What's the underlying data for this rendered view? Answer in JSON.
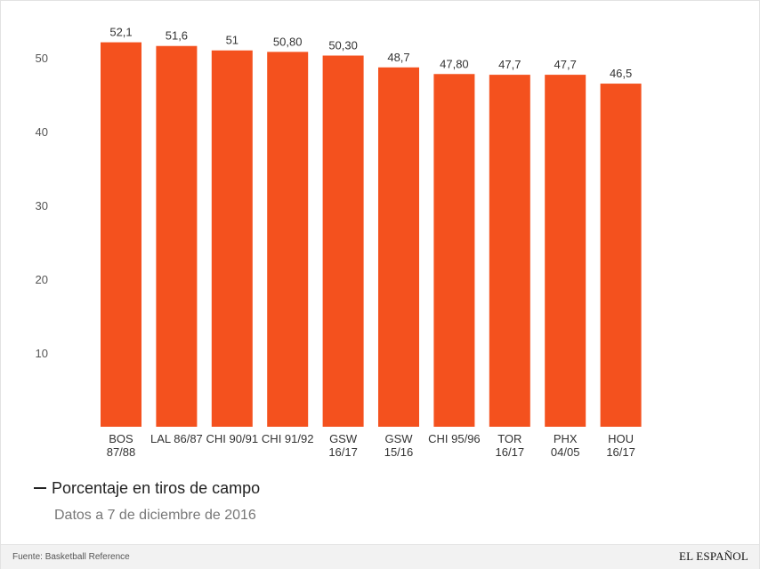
{
  "chart_data": {
    "type": "bar",
    "categories": [
      [
        "BOS",
        "87/88"
      ],
      [
        "LAL 86/87"
      ],
      [
        "CHI 90/91"
      ],
      [
        "CHI 91/92"
      ],
      [
        "GSW",
        "16/17"
      ],
      [
        "GSW",
        "15/16"
      ],
      [
        "CHI 95/96"
      ],
      [
        "TOR",
        "16/17"
      ],
      [
        "PHX",
        "04/05"
      ],
      [
        "HOU",
        "16/17"
      ]
    ],
    "values": [
      52.1,
      51.6,
      51,
      50.8,
      50.3,
      48.7,
      47.8,
      47.7,
      47.7,
      46.5
    ],
    "value_labels": [
      "52,1",
      "51,6",
      "51",
      "50,80",
      "50,30",
      "48,7",
      "47,80",
      "47,7",
      "47,7",
      "46,5"
    ],
    "yticks": [
      10,
      20,
      30,
      40,
      50
    ],
    "ylim": [
      0,
      55
    ],
    "grid": false,
    "bar_color": "#f4511e"
  },
  "legend": {
    "label": "Porcentaje en tiros de campo",
    "position": "bottom-left"
  },
  "note": "Datos a 7 de diciembre de 2016",
  "footer": {
    "source": "Fuente: Basketball Reference",
    "logo": "EL ESPAÑOL"
  }
}
